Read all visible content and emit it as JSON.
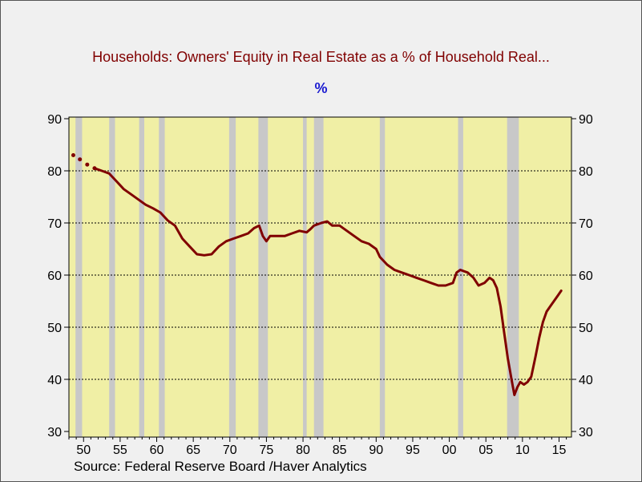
{
  "chart_data": {
    "type": "line",
    "title": "Households: Owners' Equity in Real Estate as a % of Household Real...",
    "subtitle": "%",
    "source": "Source:  Federal Reserve Board /Haver Analytics",
    "ylim": [
      30,
      90
    ],
    "xlim": [
      1948.0,
      2016.7
    ],
    "y_ticks": [
      30,
      40,
      50,
      60,
      70,
      80,
      90
    ],
    "x_ticks": [
      1950,
      1955,
      1960,
      1965,
      1970,
      1975,
      1980,
      1985,
      1990,
      1995,
      2000,
      2005,
      2010,
      2015
    ],
    "x_tick_labels": [
      "50",
      "55",
      "60",
      "65",
      "70",
      "75",
      "80",
      "85",
      "90",
      "95",
      "00",
      "05",
      "10",
      "15"
    ],
    "grid": "horizontal dotted",
    "recessions": [
      [
        1948.9,
        1949.8
      ],
      [
        1953.5,
        1954.3
      ],
      [
        1957.6,
        1958.3
      ],
      [
        1960.3,
        1961.1
      ],
      [
        1969.9,
        1970.8
      ],
      [
        1973.9,
        1975.2
      ],
      [
        1980.0,
        1980.5
      ],
      [
        1981.5,
        1982.8
      ],
      [
        1990.5,
        1991.2
      ],
      [
        2001.2,
        2001.9
      ],
      [
        2007.9,
        2009.5
      ]
    ],
    "series": [
      {
        "color": "#800000",
        "dotted_until": 1951.5,
        "x": [
          1948.6,
          1949.5,
          1950.5,
          1951.5,
          1952.5,
          1953.5,
          1954.5,
          1955.5,
          1956.5,
          1957.5,
          1958.5,
          1959.5,
          1960.5,
          1961.5,
          1962.5,
          1963.5,
          1964.5,
          1965.5,
          1966.5,
          1967.5,
          1968.5,
          1969.5,
          1970.5,
          1971.5,
          1972.5,
          1973.3,
          1974.0,
          1974.5,
          1975.0,
          1975.5,
          1976.5,
          1977.5,
          1978.5,
          1979.5,
          1980.5,
          1981.0,
          1981.5,
          1982.5,
          1983.3,
          1984.0,
          1985.0,
          1986.0,
          1987.0,
          1988.0,
          1989.0,
          1990.0,
          1990.5,
          1991.5,
          1992.5,
          1993.5,
          1994.5,
          1995.5,
          1996.5,
          1997.5,
          1998.5,
          1999.5,
          2000.5,
          2001.0,
          2001.5,
          2002.5,
          2003.3,
          2004.0,
          2004.8,
          2005.5,
          2006.0,
          2006.5,
          2007.0,
          2007.5,
          2008.0,
          2008.5,
          2008.9,
          2009.3,
          2009.7,
          2010.2,
          2010.7,
          2011.2,
          2011.8,
          2012.3,
          2012.8,
          2013.3,
          2013.8,
          2014.3,
          2014.8,
          2015.3
        ],
        "y": [
          83.0,
          82.2,
          81.2,
          80.5,
          80.0,
          79.5,
          78.0,
          76.5,
          75.5,
          74.5,
          73.5,
          72.8,
          72.0,
          70.5,
          69.5,
          67.0,
          65.5,
          64.0,
          63.8,
          64.0,
          65.5,
          66.5,
          67.0,
          67.5,
          68.0,
          69.0,
          69.5,
          67.5,
          66.5,
          67.5,
          67.5,
          67.5,
          68.0,
          68.5,
          68.2,
          68.8,
          69.5,
          70.0,
          70.3,
          69.5,
          69.5,
          68.5,
          67.5,
          66.5,
          66.0,
          65.0,
          63.5,
          62.0,
          61.0,
          60.5,
          60.0,
          59.5,
          59.0,
          58.5,
          58.0,
          58.0,
          58.5,
          60.5,
          61.0,
          60.5,
          59.5,
          58.0,
          58.5,
          59.5,
          59.0,
          57.5,
          54.0,
          49.0,
          44.0,
          40.0,
          37.0,
          38.5,
          39.5,
          39.0,
          39.5,
          40.5,
          44.5,
          48.0,
          51.0,
          53.0,
          54.0,
          55.0,
          56.0,
          57.0
        ]
      }
    ]
  }
}
